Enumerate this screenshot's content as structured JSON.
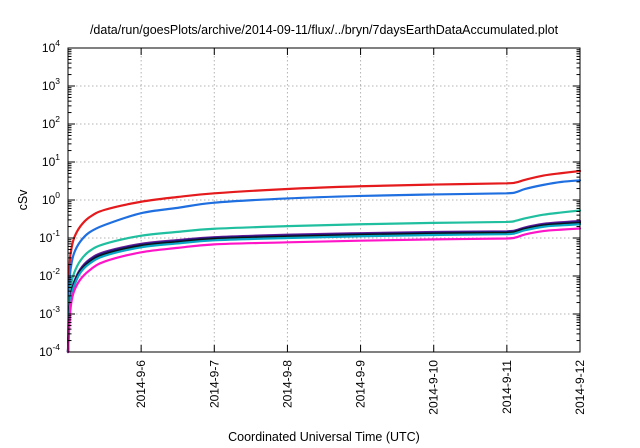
{
  "chart_data": {
    "type": "line",
    "title": "/data/run/goesPlots/archive/2014-09-11/flux/../bryn/7daysEarthDataAccumulated.plot",
    "xlabel": "Coordinated Universal Time (UTC)",
    "ylabel": "cSv",
    "x_tick_labels": [
      "2014-9-6",
      "2014-9-7",
      "2014-9-8",
      "2014-9-9",
      "2014-9-10",
      "2014-9-11",
      "2014-9-12"
    ],
    "xlim": [
      "2014-09-05",
      "2014-09-12"
    ],
    "x_tick_dates": [
      "2014-09-06",
      "2014-09-07",
      "2014-09-08",
      "2014-09-09",
      "2014-09-10",
      "2014-09-11",
      "2014-09-12"
    ],
    "y_scale": "log",
    "ylim": [
      0.0001,
      10000
    ],
    "y_tick_labels": [
      {
        "base": "10",
        "exp": "-4"
      },
      {
        "base": "10",
        "exp": "-3"
      },
      {
        "base": "10",
        "exp": "-2"
      },
      {
        "base": "10",
        "exp": "-1"
      },
      {
        "base": "10",
        "exp": "0"
      },
      {
        "base": "10",
        "exp": "1"
      },
      {
        "base": "10",
        "exp": "2"
      },
      {
        "base": "10",
        "exp": "3"
      },
      {
        "base": "10",
        "exp": "4"
      }
    ],
    "grid": true,
    "legend": false,
    "x": [
      "2014-09-05 00:00",
      "2014-09-05 00:30",
      "2014-09-05 01:00",
      "2014-09-05 02:00",
      "2014-09-05 04:00",
      "2014-09-05 07:00",
      "2014-09-05 12:00",
      "2014-09-06 00:00",
      "2014-09-06 12:00",
      "2014-09-07 00:00",
      "2014-09-08 00:00",
      "2014-09-09 00:00",
      "2014-09-10 00:00",
      "2014-09-11 00:00",
      "2014-09-11 03:00",
      "2014-09-11 06:00",
      "2014-09-11 12:00",
      "2014-09-11 18:00",
      "2014-09-12 00:00"
    ],
    "series": [
      {
        "color": "#e41a1c",
        "values": [
          0.0001,
          0.015,
          0.045,
          0.1,
          0.2,
          0.35,
          0.55,
          0.9,
          1.2,
          1.5,
          1.95,
          2.3,
          2.55,
          2.75,
          2.9,
          3.4,
          4.4,
          5.1,
          5.8
        ]
      },
      {
        "color": "#1f6fe0",
        "values": [
          0.0001,
          0.006,
          0.018,
          0.04,
          0.08,
          0.14,
          0.22,
          0.45,
          0.62,
          0.85,
          1.1,
          1.28,
          1.4,
          1.5,
          1.6,
          1.95,
          2.5,
          3.0,
          3.3
        ]
      },
      {
        "color": "#1fbf9f",
        "values": [
          0.0001,
          0.002,
          0.006,
          0.012,
          0.025,
          0.045,
          0.07,
          0.115,
          0.145,
          0.175,
          0.205,
          0.23,
          0.25,
          0.265,
          0.285,
          0.33,
          0.41,
          0.47,
          0.53
        ]
      },
      {
        "color": "#6a1b9a",
        "values": [
          0.0001,
          0.0012,
          0.0035,
          0.007,
          0.015,
          0.027,
          0.043,
          0.07,
          0.088,
          0.105,
          0.122,
          0.134,
          0.144,
          0.15,
          0.16,
          0.19,
          0.235,
          0.26,
          0.28
        ]
      },
      {
        "color": "#1a1a7a",
        "values": [
          0.0001,
          0.0011,
          0.0032,
          0.0065,
          0.014,
          0.025,
          0.04,
          0.066,
          0.083,
          0.1,
          0.115,
          0.127,
          0.137,
          0.143,
          0.153,
          0.18,
          0.222,
          0.245,
          0.262
        ]
      },
      {
        "color": "#111111",
        "values": [
          0.0001,
          0.001,
          0.003,
          0.006,
          0.013,
          0.023,
          0.037,
          0.062,
          0.078,
          0.094,
          0.108,
          0.12,
          0.13,
          0.136,
          0.146,
          0.172,
          0.212,
          0.232,
          0.248
        ]
      },
      {
        "color": "#0aa7c7",
        "values": [
          0.0001,
          0.0009,
          0.0028,
          0.0055,
          0.012,
          0.021,
          0.034,
          0.057,
          0.072,
          0.087,
          0.1,
          0.111,
          0.12,
          0.126,
          0.135,
          0.16,
          0.198,
          0.216,
          0.23
        ]
      },
      {
        "color": "#ff14c8",
        "values": [
          0.0001,
          0.0006,
          0.0018,
          0.004,
          0.008,
          0.014,
          0.024,
          0.042,
          0.055,
          0.068,
          0.077,
          0.085,
          0.092,
          0.097,
          0.104,
          0.124,
          0.152,
          0.166,
          0.178
        ]
      }
    ]
  }
}
